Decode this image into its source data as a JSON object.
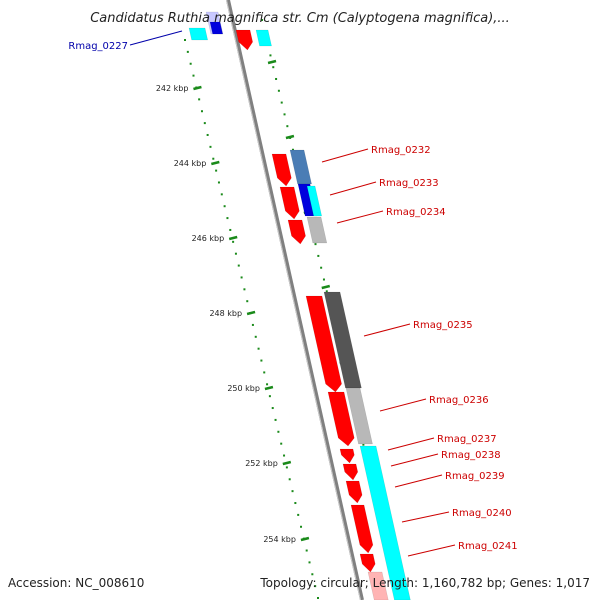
{
  "title": "Candidatus Ruthia magnifica str. Cm (Calyptogena magnifica),...",
  "accession": "Accession: NC_008610",
  "topology": "Topology: circular; Length: 1,160,782 bp; Genes: 1,017",
  "ticks": [
    {
      "label": "242 kbp",
      "kbp": 242
    },
    {
      "label": "244 kbp",
      "kbp": 244
    },
    {
      "label": "246 kbp",
      "kbp": 246
    },
    {
      "label": "248 kbp",
      "kbp": 248
    },
    {
      "label": "250 kbp",
      "kbp": 250
    },
    {
      "label": "252 kbp",
      "kbp": 252
    },
    {
      "label": "254 kbp",
      "kbp": 254
    }
  ],
  "genes": [
    {
      "label": "Rmag_0227",
      "color": "#0000aa"
    },
    {
      "label": "Rmag_0232",
      "color": "#cc0000"
    },
    {
      "label": "Rmag_0233",
      "color": "#cc0000"
    },
    {
      "label": "Rmag_0234",
      "color": "#cc0000"
    },
    {
      "label": "Rmag_0235",
      "color": "#cc0000"
    },
    {
      "label": "Rmag_0236",
      "color": "#cc0000"
    },
    {
      "label": "Rmag_0237",
      "color": "#cc0000"
    },
    {
      "label": "Rmag_0238",
      "color": "#cc0000"
    },
    {
      "label": "Rmag_0239",
      "color": "#cc0000"
    },
    {
      "label": "Rmag_0240",
      "color": "#cc0000"
    },
    {
      "label": "Rmag_0241",
      "color": "#cc0000"
    }
  ],
  "colors": {
    "cds_red": "#ff0000",
    "cyan": "#00ffff",
    "dark_gray": "#555555",
    "light_gray": "#b8b8b8",
    "steel_blue": "#4a7db5",
    "blue": "#0000dd",
    "tick_green": "#1a8a1a",
    "backbone": "#808080"
  }
}
